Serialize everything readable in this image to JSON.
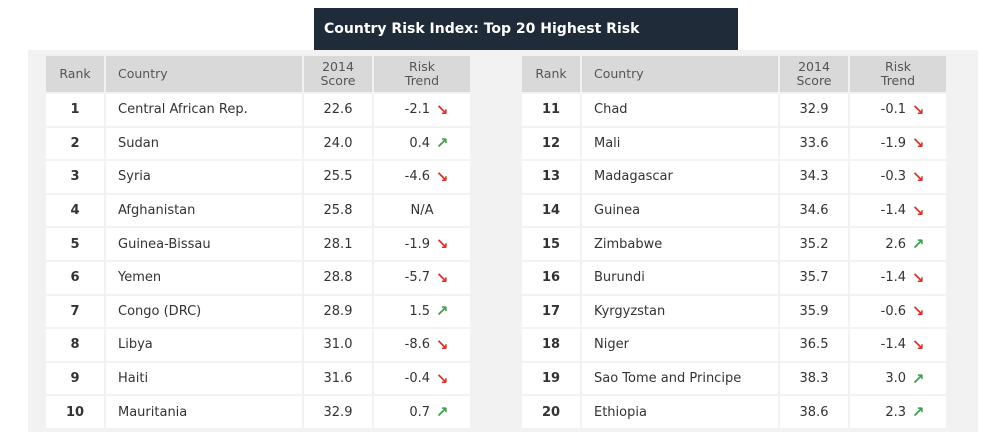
{
  "title": "Country Risk Index: Top 20 Highest Risk",
  "headers": {
    "rank": "Rank",
    "country": "Country",
    "score_line1": "2014",
    "score_line2": "Score",
    "trend_line1": "Risk",
    "trend_line2": "Trend"
  },
  "colors": {
    "title_bg": "#1f2b38",
    "header_bg": "#d9d9d9",
    "down": "#d9342b",
    "up": "#3aa04a"
  },
  "left_rows": [
    {
      "rank": "1",
      "country": "Central African Rep.",
      "score": "22.6",
      "trend": "-2.1",
      "direction": "down",
      "icon": "arrow-down-right-icon"
    },
    {
      "rank": "2",
      "country": "Sudan",
      "score": "24.0",
      "trend": "0.4",
      "direction": "up",
      "icon": "arrow-up-right-icon"
    },
    {
      "rank": "3",
      "country": "Syria",
      "score": "25.5",
      "trend": "-4.6",
      "direction": "down",
      "icon": "arrow-down-right-icon"
    },
    {
      "rank": "4",
      "country": "Afghanistan",
      "score": "25.8",
      "trend": "N/A",
      "direction": "none",
      "icon": ""
    },
    {
      "rank": "5",
      "country": "Guinea-Bissau",
      "score": "28.1",
      "trend": "-1.9",
      "direction": "down",
      "icon": "arrow-down-right-icon"
    },
    {
      "rank": "6",
      "country": "Yemen",
      "score": "28.8",
      "trend": "-5.7",
      "direction": "down",
      "icon": "arrow-down-right-icon"
    },
    {
      "rank": "7",
      "country": "Congo (DRC)",
      "score": "28.9",
      "trend": "1.5",
      "direction": "up",
      "icon": "arrow-up-right-icon"
    },
    {
      "rank": "8",
      "country": "Libya",
      "score": "31.0",
      "trend": "-8.6",
      "direction": "down",
      "icon": "arrow-down-right-icon"
    },
    {
      "rank": "9",
      "country": "Haiti",
      "score": "31.6",
      "trend": "-0.4",
      "direction": "down",
      "icon": "arrow-down-right-icon"
    },
    {
      "rank": "10",
      "country": "Mauritania",
      "score": "32.9",
      "trend": "0.7",
      "direction": "up",
      "icon": "arrow-up-right-icon"
    }
  ],
  "right_rows": [
    {
      "rank": "11",
      "country": "Chad",
      "score": "32.9",
      "trend": "-0.1",
      "direction": "down",
      "icon": "arrow-down-right-icon"
    },
    {
      "rank": "12",
      "country": "Mali",
      "score": "33.6",
      "trend": "-1.9",
      "direction": "down",
      "icon": "arrow-down-right-icon"
    },
    {
      "rank": "13",
      "country": "Madagascar",
      "score": "34.3",
      "trend": "-0.3",
      "direction": "down",
      "icon": "arrow-down-right-icon"
    },
    {
      "rank": "14",
      "country": "Guinea",
      "score": "34.6",
      "trend": "-1.4",
      "direction": "down",
      "icon": "arrow-down-right-icon"
    },
    {
      "rank": "15",
      "country": "Zimbabwe",
      "score": "35.2",
      "trend": "2.6",
      "direction": "up",
      "icon": "arrow-up-right-icon"
    },
    {
      "rank": "16",
      "country": "Burundi",
      "score": "35.7",
      "trend": "-1.4",
      "direction": "down",
      "icon": "arrow-down-right-icon"
    },
    {
      "rank": "17",
      "country": "Kyrgyzstan",
      "score": "35.9",
      "trend": "-0.6",
      "direction": "down",
      "icon": "arrow-down-right-icon"
    },
    {
      "rank": "18",
      "country": "Niger",
      "score": "36.5",
      "trend": "-1.4",
      "direction": "down",
      "icon": "arrow-down-right-icon"
    },
    {
      "rank": "19",
      "country": "Sao Tome and Principe",
      "score": "38.3",
      "trend": "3.0",
      "direction": "up",
      "icon": "arrow-up-right-icon"
    },
    {
      "rank": "20",
      "country": "Ethiopia",
      "score": "38.6",
      "trend": "2.3",
      "direction": "up",
      "icon": "arrow-up-right-icon"
    }
  ]
}
